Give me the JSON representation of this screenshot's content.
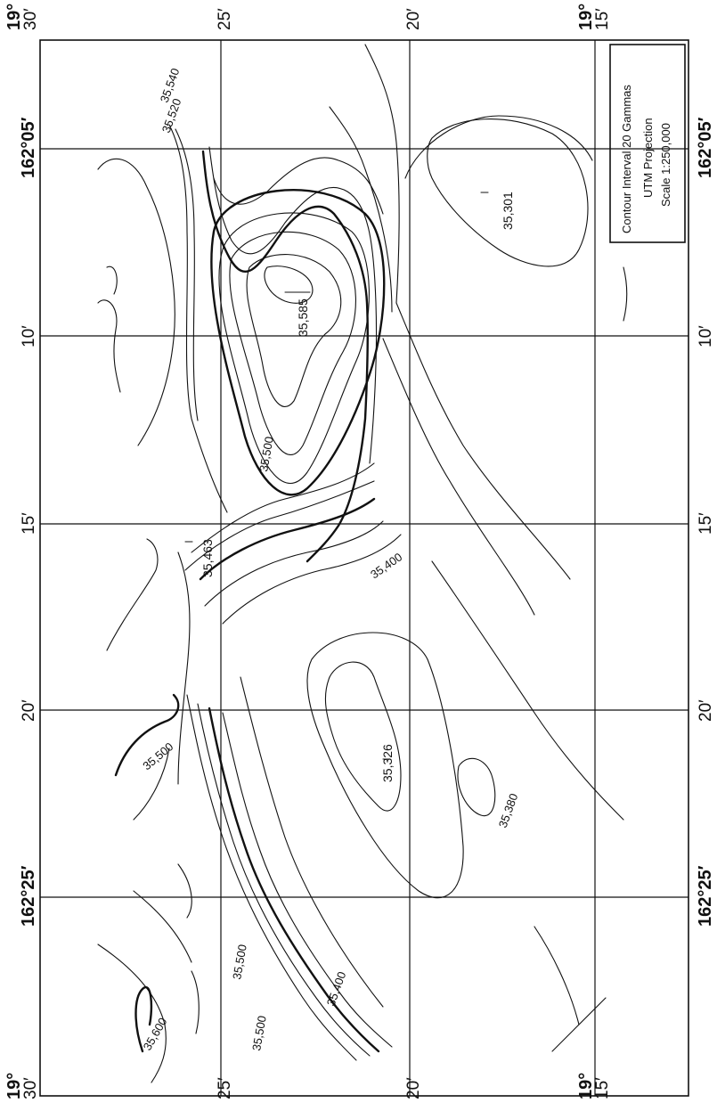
{
  "legend": {
    "interval": "Contour Interval 20 Gammas",
    "projection": "UTM Projection",
    "scale": "Scale 1:250,000"
  },
  "latitude_labels": {
    "deg_30": "19°",
    "min_30": "30′",
    "lat_25": "25′",
    "lat_20": "20′",
    "deg_15": "19°",
    "min_15": "15′"
  },
  "longitude_labels": {
    "lon_05": "162°05′",
    "lon_10": "10′",
    "lon_15": "15′",
    "lon_20": "20′",
    "lon_25": "162°25′"
  },
  "contour_labels": [
    "35,520",
    "35,540",
    "35,500",
    "35,400",
    "35,500",
    "35,500",
    "35,600",
    "35,500",
    "35,400",
    "35,380"
  ],
  "spot_values": {
    "a": "35,585",
    "b": "35,301",
    "c": "35,463",
    "d": "35,326"
  },
  "colors": {
    "ink": "#111111",
    "paper": "#ffffff"
  }
}
